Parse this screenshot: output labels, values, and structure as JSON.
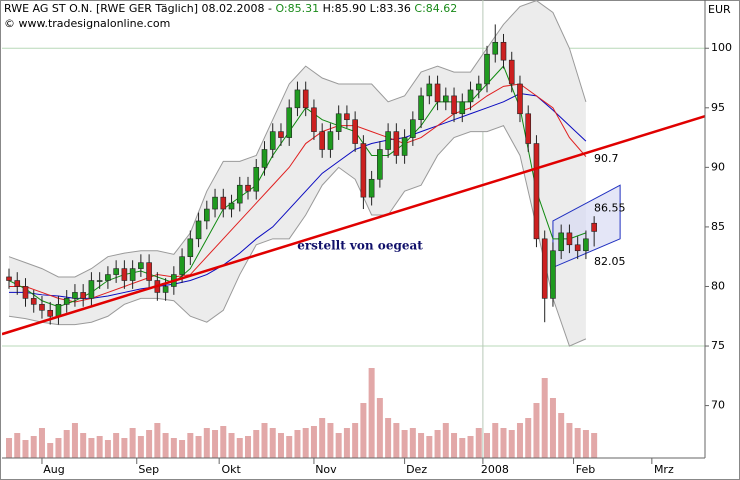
{
  "chart_data": {
    "type": "candlestick",
    "header": {
      "title": "RWE AG ST O.N. [RWE GER  Täglich] 08.02.2008 -",
      "open": "O:85.31",
      "high": "H:85.90",
      "low": "L:83.36",
      "close": "C:84.62",
      "source": "© www.tradesignalonline.com"
    },
    "y_unit": "EUR",
    "annotation": "erstellt von oegeat",
    "xlim": [
      -9.7,
      160.9
    ],
    "ylim": [
      65.6,
      104.05
    ],
    "yticks": [
      70,
      75,
      80,
      85,
      90,
      95,
      100
    ],
    "ygrid": [
      75,
      100
    ],
    "xgrid": [
      107
    ],
    "xticks": [
      {
        "value": 0,
        "label": "Aug"
      },
      {
        "value": 23,
        "label": "Sep"
      },
      {
        "value": 43,
        "label": "Okt"
      },
      {
        "value": 66,
        "label": "Nov"
      },
      {
        "value": 88,
        "label": "Dez"
      },
      {
        "value": 107,
        "label": "2008"
      },
      {
        "value": 129,
        "label": "Feb"
      },
      {
        "value": 148,
        "label": "Mrz"
      }
    ],
    "up_color": "#1f9a1f",
    "down_color": "#cc2020",
    "x": [
      -8,
      -6,
      -4,
      -2,
      0,
      2,
      4,
      6,
      8,
      10,
      12,
      14,
      16,
      18,
      20,
      22,
      24,
      26,
      28,
      30,
      32,
      34,
      36,
      38,
      40,
      42,
      44,
      46,
      48,
      50,
      52,
      54,
      56,
      58,
      60,
      62,
      64,
      66,
      68,
      70,
      72,
      74,
      76,
      78,
      80,
      82,
      84,
      86,
      88,
      90,
      92,
      94,
      96,
      98,
      100,
      102,
      104,
      106,
      108,
      110,
      112,
      114,
      116,
      118,
      120,
      122,
      124,
      126,
      128,
      130,
      132,
      134
    ],
    "open": [
      80.8,
      80.5,
      80,
      79,
      78.5,
      78,
      77.5,
      78.5,
      79,
      79.5,
      79,
      80.5,
      80.5,
      81,
      81.5,
      80.5,
      81.5,
      82,
      80.5,
      79.5,
      80,
      81,
      82.5,
      84,
      85.5,
      86.5,
      87.5,
      86.5,
      87,
      88.5,
      88,
      90,
      91.5,
      93,
      92.5,
      95,
      96.5,
      95,
      93,
      91.5,
      93,
      94.5,
      94,
      92,
      87.5,
      89,
      91.5,
      93,
      91,
      92.5,
      94,
      96,
      97,
      95.5,
      96,
      94.5,
      95.5,
      96.5,
      97,
      99.5,
      100.5,
      99,
      97,
      94.5,
      92,
      84,
      79,
      83,
      84.5,
      83.5,
      83,
      85.31
    ],
    "high": [
      81.5,
      81.2,
      80.7,
      79.7,
      79.2,
      78.7,
      79.2,
      79.7,
      80.2,
      80.2,
      81.2,
      81.2,
      81.7,
      82.2,
      82.2,
      82.2,
      82.7,
      82.7,
      81.2,
      80.7,
      81.7,
      83.2,
      84.7,
      86.2,
      87.2,
      88.2,
      88.2,
      87.7,
      89.2,
      89.2,
      90.7,
      92.2,
      93.7,
      93.7,
      95.7,
      97.2,
      97.2,
      95.7,
      93.7,
      93.7,
      95.2,
      95.2,
      94.7,
      92.7,
      89.7,
      92.2,
      93.7,
      93.7,
      93.2,
      94.7,
      96.7,
      97.7,
      97.7,
      96.7,
      96.7,
      96.2,
      97.2,
      97.7,
      100.2,
      102,
      101.2,
      99.7,
      97.7,
      95.2,
      92.7,
      84.7,
      83.7,
      85.2,
      85.2,
      84.2,
      84.7,
      85.9
    ],
    "low": [
      79.8,
      79.3,
      78.3,
      77.8,
      77.3,
      76.8,
      76.8,
      77.8,
      78.3,
      78.3,
      78.3,
      79.8,
      79.8,
      80.3,
      79.8,
      79.8,
      80.8,
      79.8,
      78.8,
      78.8,
      79.3,
      80.3,
      81.8,
      83.3,
      84.8,
      85.8,
      85.8,
      85.8,
      86.3,
      87.3,
      87.3,
      89.3,
      90.8,
      91.8,
      91.8,
      94.3,
      94.3,
      92.3,
      90.8,
      90.8,
      92.3,
      93.3,
      91.3,
      86.5,
      86.8,
      88.3,
      90.8,
      90.3,
      90.3,
      91.8,
      93.3,
      95.3,
      94.8,
      94.8,
      93.8,
      93.8,
      94.8,
      95.8,
      96.3,
      98.8,
      98.3,
      96.3,
      93.8,
      91.3,
      83.3,
      77,
      78.3,
      82.3,
      82.8,
      82.3,
      82.3,
      83.36
    ],
    "close": [
      80.5,
      80,
      79,
      78.5,
      78,
      77.5,
      78.5,
      79,
      79.5,
      79,
      80.5,
      80.5,
      81,
      81.5,
      80.5,
      81.5,
      82,
      80.5,
      79.5,
      80,
      81,
      82.5,
      84,
      85.5,
      86.5,
      87.5,
      86.5,
      87,
      88.5,
      88,
      90,
      91.5,
      93,
      92.5,
      95,
      96.5,
      95,
      93,
      91.5,
      93,
      94.5,
      94,
      92,
      87.5,
      89,
      91.5,
      93,
      91,
      92.5,
      94,
      96,
      97,
      95.5,
      96,
      94.5,
      95.5,
      96.5,
      97,
      99.5,
      100.5,
      99,
      97,
      94.5,
      92,
      84,
      79,
      83,
      84.5,
      83.5,
      83,
      84,
      84.62
    ],
    "volume": [
      20,
      25,
      18,
      22,
      30,
      15,
      20,
      28,
      35,
      25,
      20,
      22,
      18,
      25,
      20,
      30,
      22,
      28,
      35,
      25,
      20,
      18,
      25,
      22,
      30,
      28,
      32,
      25,
      20,
      22,
      28,
      35,
      30,
      25,
      22,
      28,
      30,
      32,
      40,
      35,
      25,
      30,
      35,
      55,
      90,
      60,
      40,
      35,
      28,
      30,
      25,
      22,
      28,
      35,
      25,
      20,
      22,
      30,
      25,
      35,
      30,
      28,
      35,
      40,
      55,
      80,
      60,
      45,
      35,
      30,
      28,
      25
    ],
    "volume_color": "#e2a8a8",
    "overlay_x": [
      -8,
      -4,
      0,
      4,
      8,
      12,
      16,
      20,
      24,
      28,
      32,
      36,
      40,
      44,
      48,
      52,
      56,
      60,
      64,
      68,
      72,
      76,
      80,
      84,
      88,
      92,
      96,
      100,
      104,
      108,
      112,
      116,
      120,
      124,
      128,
      132
    ],
    "bands": {
      "color": "#9a9a9a",
      "fill": "#ececec",
      "upper": [
        82.5,
        82,
        81.5,
        80.8,
        80.8,
        81.5,
        82.5,
        82.8,
        83,
        83,
        82.7,
        84.5,
        88,
        90.5,
        90.5,
        91,
        94,
        97,
        98.5,
        97.5,
        97,
        97,
        97,
        95.5,
        96,
        98,
        98.5,
        98,
        98,
        100,
        102,
        103.5,
        104,
        103,
        100,
        95.5
      ],
      "lower": [
        77.5,
        77.3,
        77,
        76.8,
        76.8,
        77,
        77.5,
        78.5,
        79,
        79,
        78.8,
        77.5,
        77,
        78,
        81,
        83.5,
        84,
        84,
        86,
        88.5,
        90,
        89,
        86,
        86,
        88,
        88.5,
        91,
        92.5,
        93,
        93,
        93.5,
        91,
        85,
        79,
        75,
        75.6
      ]
    },
    "ma_lines": [
      {
        "color": "#0a0ac0",
        "values": [
          79.5,
          79.5,
          79.3,
          79.2,
          79,
          79,
          79.2,
          79.5,
          79.8,
          80,
          80.2,
          80.5,
          81,
          81.8,
          82.8,
          84,
          85,
          86.5,
          88,
          89.5,
          90.5,
          91.5,
          92,
          92.3,
          92.5,
          93,
          93.5,
          94,
          94.5,
          95,
          95.5,
          96.2,
          96,
          94.8,
          93.5,
          92.2
        ]
      },
      {
        "color": "#e02020",
        "values": [
          80,
          80,
          79.5,
          79,
          78.7,
          79,
          79.5,
          80,
          80.5,
          81,
          80.8,
          81,
          82.5,
          84,
          85.5,
          87,
          88.5,
          90,
          92,
          93,
          93.5,
          93.5,
          93,
          92.5,
          92,
          92.5,
          93.5,
          94.5,
          95,
          96,
          96.8,
          97,
          96,
          95,
          92.5,
          90.9
        ]
      },
      {
        "color": "#108a10",
        "values": [
          80.5,
          79.8,
          78.8,
          78.3,
          78.8,
          79.5,
          80.5,
          81,
          81.3,
          80.8,
          80.3,
          81.5,
          84,
          86.5,
          87.5,
          88.5,
          91,
          93,
          95,
          94,
          93.5,
          93,
          91,
          91,
          92,
          93.5,
          95.5,
          95.5,
          95.5,
          97,
          98.5,
          95,
          88,
          84,
          84,
          84.5
        ]
      }
    ],
    "trendline": {
      "color": "#e00000",
      "x": [
        -9.7,
        160.9
      ],
      "y": [
        76.0,
        94.3
      ]
    },
    "channel": {
      "color": "#2030c0",
      "fill": "#d8dcf4",
      "x": [
        124,
        140.3
      ],
      "upper": [
        85.5,
        88.5
      ],
      "lower": [
        81.6,
        84.0
      ]
    },
    "level_labels": [
      {
        "value": 90.7,
        "color": "#d01010"
      },
      {
        "value": 86.55,
        "color": "#2030a0"
      },
      {
        "value": 82.05,
        "color": "#2030a0"
      }
    ]
  }
}
